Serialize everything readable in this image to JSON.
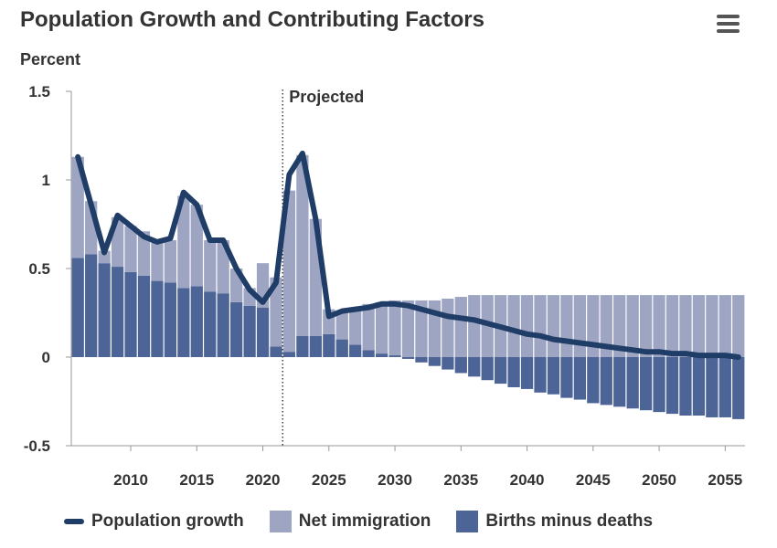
{
  "title": "Population Growth and Contributing Factors",
  "chart_data": {
    "type": "bar",
    "title": "Population Growth and Contributing Factors",
    "ylabel": "Percent",
    "xlabel": "",
    "ylim": [
      -0.5,
      1.5
    ],
    "yticks": [
      -0.5,
      0,
      0.5,
      1,
      1.5
    ],
    "ytick_labels": [
      "-0.5",
      "0",
      "0.5",
      "1",
      "1.5"
    ],
    "xticks": [
      2010,
      2015,
      2020,
      2025,
      2030,
      2035,
      2040,
      2045,
      2050,
      2055
    ],
    "xtick_labels": [
      "2010",
      "2015",
      "2020",
      "2025",
      "2030",
      "2035",
      "2040",
      "2045",
      "2050",
      "2055"
    ],
    "projected_start": 2021.5,
    "projected_label": "Projected",
    "years": [
      2006,
      2007,
      2008,
      2009,
      2010,
      2011,
      2012,
      2013,
      2014,
      2015,
      2016,
      2017,
      2018,
      2019,
      2020,
      2021,
      2022,
      2023,
      2024,
      2025,
      2026,
      2027,
      2028,
      2029,
      2030,
      2031,
      2032,
      2033,
      2034,
      2035,
      2036,
      2037,
      2038,
      2039,
      2040,
      2041,
      2042,
      2043,
      2044,
      2045,
      2046,
      2047,
      2048,
      2049,
      2050,
      2051,
      2052,
      2053,
      2054,
      2055,
      2056
    ],
    "series": [
      {
        "name": "Population growth",
        "type": "line",
        "color": "#1f3d66",
        "values": [
          1.13,
          0.86,
          0.59,
          0.8,
          0.74,
          0.68,
          0.65,
          0.67,
          0.93,
          0.86,
          0.66,
          0.66,
          0.5,
          0.38,
          0.31,
          0.42,
          1.03,
          1.15,
          0.78,
          0.23,
          0.26,
          0.27,
          0.28,
          0.3,
          0.3,
          0.29,
          0.27,
          0.25,
          0.23,
          0.22,
          0.21,
          0.19,
          0.17,
          0.15,
          0.13,
          0.12,
          0.1,
          0.09,
          0.08,
          0.07,
          0.06,
          0.05,
          0.04,
          0.03,
          0.03,
          0.02,
          0.02,
          0.01,
          0.01,
          0.01,
          0.0
        ]
      },
      {
        "name": "Net immigration",
        "type": "bar",
        "color": "#9da5c3",
        "values": [
          0.57,
          0.3,
          0.07,
          0.28,
          0.26,
          0.25,
          0.23,
          0.24,
          0.52,
          0.46,
          0.29,
          0.3,
          0.19,
          0.1,
          0.25,
          0.39,
          0.91,
          1.02,
          0.66,
          0.14,
          0.16,
          0.21,
          0.26,
          0.29,
          0.31,
          0.32,
          0.32,
          0.32,
          0.33,
          0.34,
          0.35,
          0.35,
          0.35,
          0.35,
          0.35,
          0.35,
          0.35,
          0.35,
          0.35,
          0.35,
          0.35,
          0.35,
          0.35,
          0.35,
          0.35,
          0.35,
          0.35,
          0.35,
          0.35,
          0.35,
          0.35
        ]
      },
      {
        "name": "Births minus deaths",
        "type": "bar",
        "color": "#4c6496",
        "values": [
          0.56,
          0.58,
          0.53,
          0.51,
          0.48,
          0.46,
          0.43,
          0.42,
          0.39,
          0.4,
          0.37,
          0.36,
          0.31,
          0.29,
          0.28,
          0.06,
          0.03,
          0.12,
          0.12,
          0.13,
          0.1,
          0.07,
          0.04,
          0.02,
          0.01,
          -0.01,
          -0.03,
          -0.05,
          -0.07,
          -0.09,
          -0.11,
          -0.13,
          -0.15,
          -0.17,
          -0.18,
          -0.2,
          -0.21,
          -0.23,
          -0.24,
          -0.26,
          -0.27,
          -0.28,
          -0.29,
          -0.3,
          -0.31,
          -0.32,
          -0.33,
          -0.33,
          -0.34,
          -0.34,
          -0.35
        ]
      }
    ],
    "legend": [
      "Population growth",
      "Net immigration",
      "Births minus deaths"
    ],
    "legend_position": "bottom"
  }
}
